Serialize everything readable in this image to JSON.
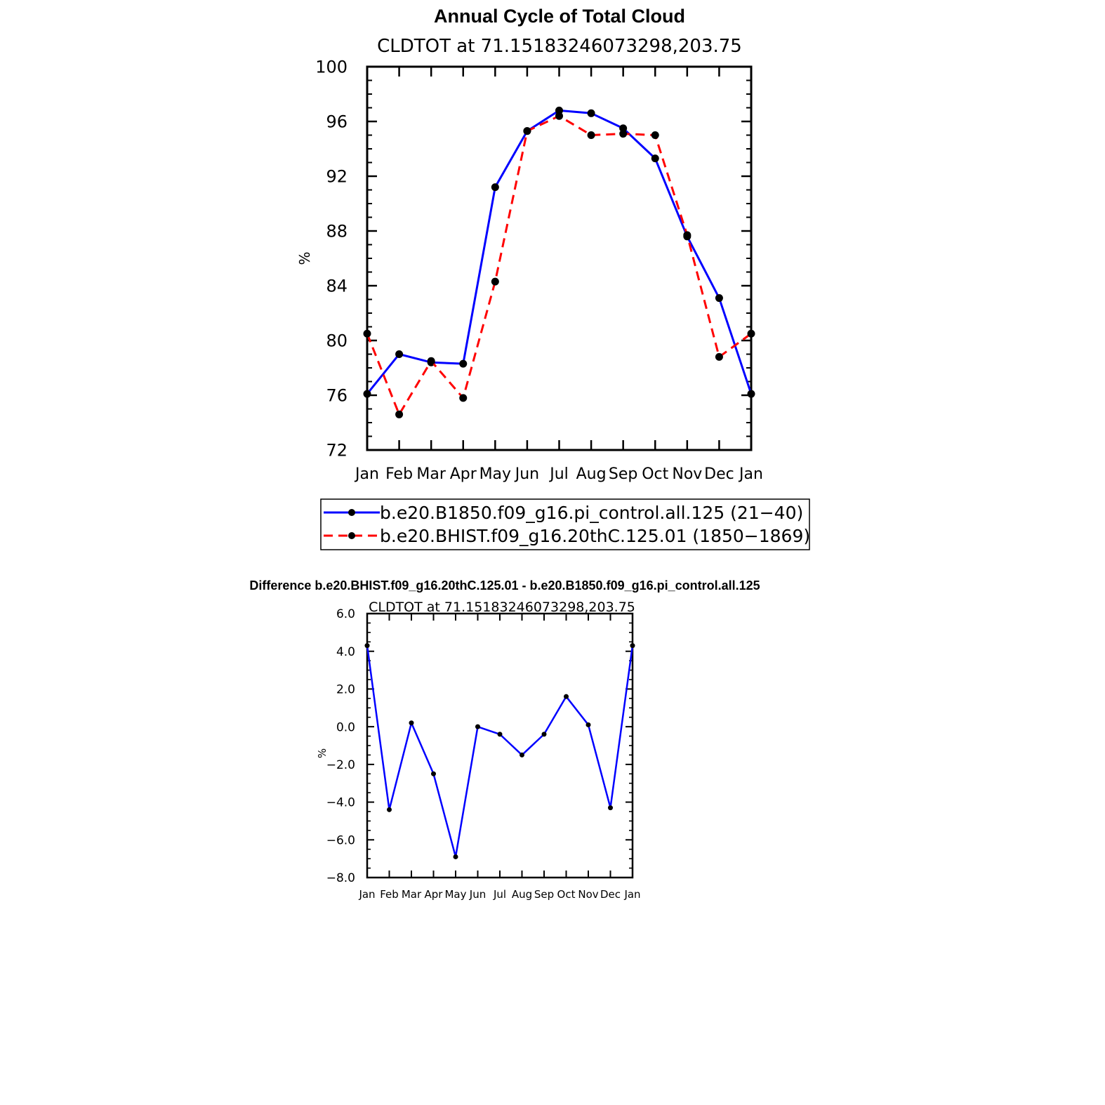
{
  "chart_data": [
    {
      "type": "line",
      "title": "Annual Cycle of Total Cloud",
      "subtitle": "CLDTOT at 71.15183246073298,203.75",
      "xlabel": "",
      "ylabel": "%",
      "categories": [
        "Jan",
        "Feb",
        "Mar",
        "Apr",
        "May",
        "Jun",
        "Jul",
        "Aug",
        "Sep",
        "Oct",
        "Nov",
        "Dec",
        "Jan"
      ],
      "ylim": [
        72,
        100
      ],
      "yticks": [
        "72",
        "76",
        "80",
        "84",
        "88",
        "92",
        "96",
        "100"
      ],
      "series": [
        {
          "name": "b.e20.B1850.f09_g16.pi_control.all.125 (21−40)",
          "color": "#0000ff",
          "dash": "solid",
          "values": [
            76.1,
            79.0,
            78.4,
            78.3,
            91.2,
            95.3,
            96.8,
            96.6,
            95.5,
            93.3,
            87.6,
            83.1,
            76.1
          ]
        },
        {
          "name": "b.e20.BHIST.f09_g16.20thC.125.01 (1850−1869)",
          "color": "#ff0000",
          "dash": "dashed",
          "values": [
            80.5,
            74.6,
            78.5,
            75.8,
            84.3,
            95.3,
            96.4,
            95.0,
            95.1,
            95.0,
            87.7,
            78.8,
            80.5
          ]
        }
      ],
      "legend": "bottom"
    },
    {
      "type": "line",
      "title": "Difference b.e20.BHIST.f09_g16.20thC.125.01 - b.e20.B1850.f09_g16.pi_control.all.125",
      "subtitle": "CLDTOT at 71.15183246073298,203.75",
      "xlabel": "",
      "ylabel": "%",
      "categories": [
        "Jan",
        "Feb",
        "Mar",
        "Apr",
        "May",
        "Jun",
        "Jul",
        "Aug",
        "Sep",
        "Oct",
        "Nov",
        "Dec",
        "Jan"
      ],
      "ylim": [
        -8,
        6
      ],
      "yticks": [
        "−8.0",
        "−6.0",
        "−4.0",
        "−2.0",
        "0.0",
        "2.0",
        "4.0",
        "6.0"
      ],
      "series": [
        {
          "color": "#0000ff",
          "dash": "solid",
          "values": [
            4.3,
            -4.4,
            0.2,
            -2.5,
            -6.9,
            0.0,
            -0.4,
            -1.5,
            -0.4,
            1.6,
            0.1,
            -4.3,
            4.3
          ]
        }
      ]
    }
  ]
}
